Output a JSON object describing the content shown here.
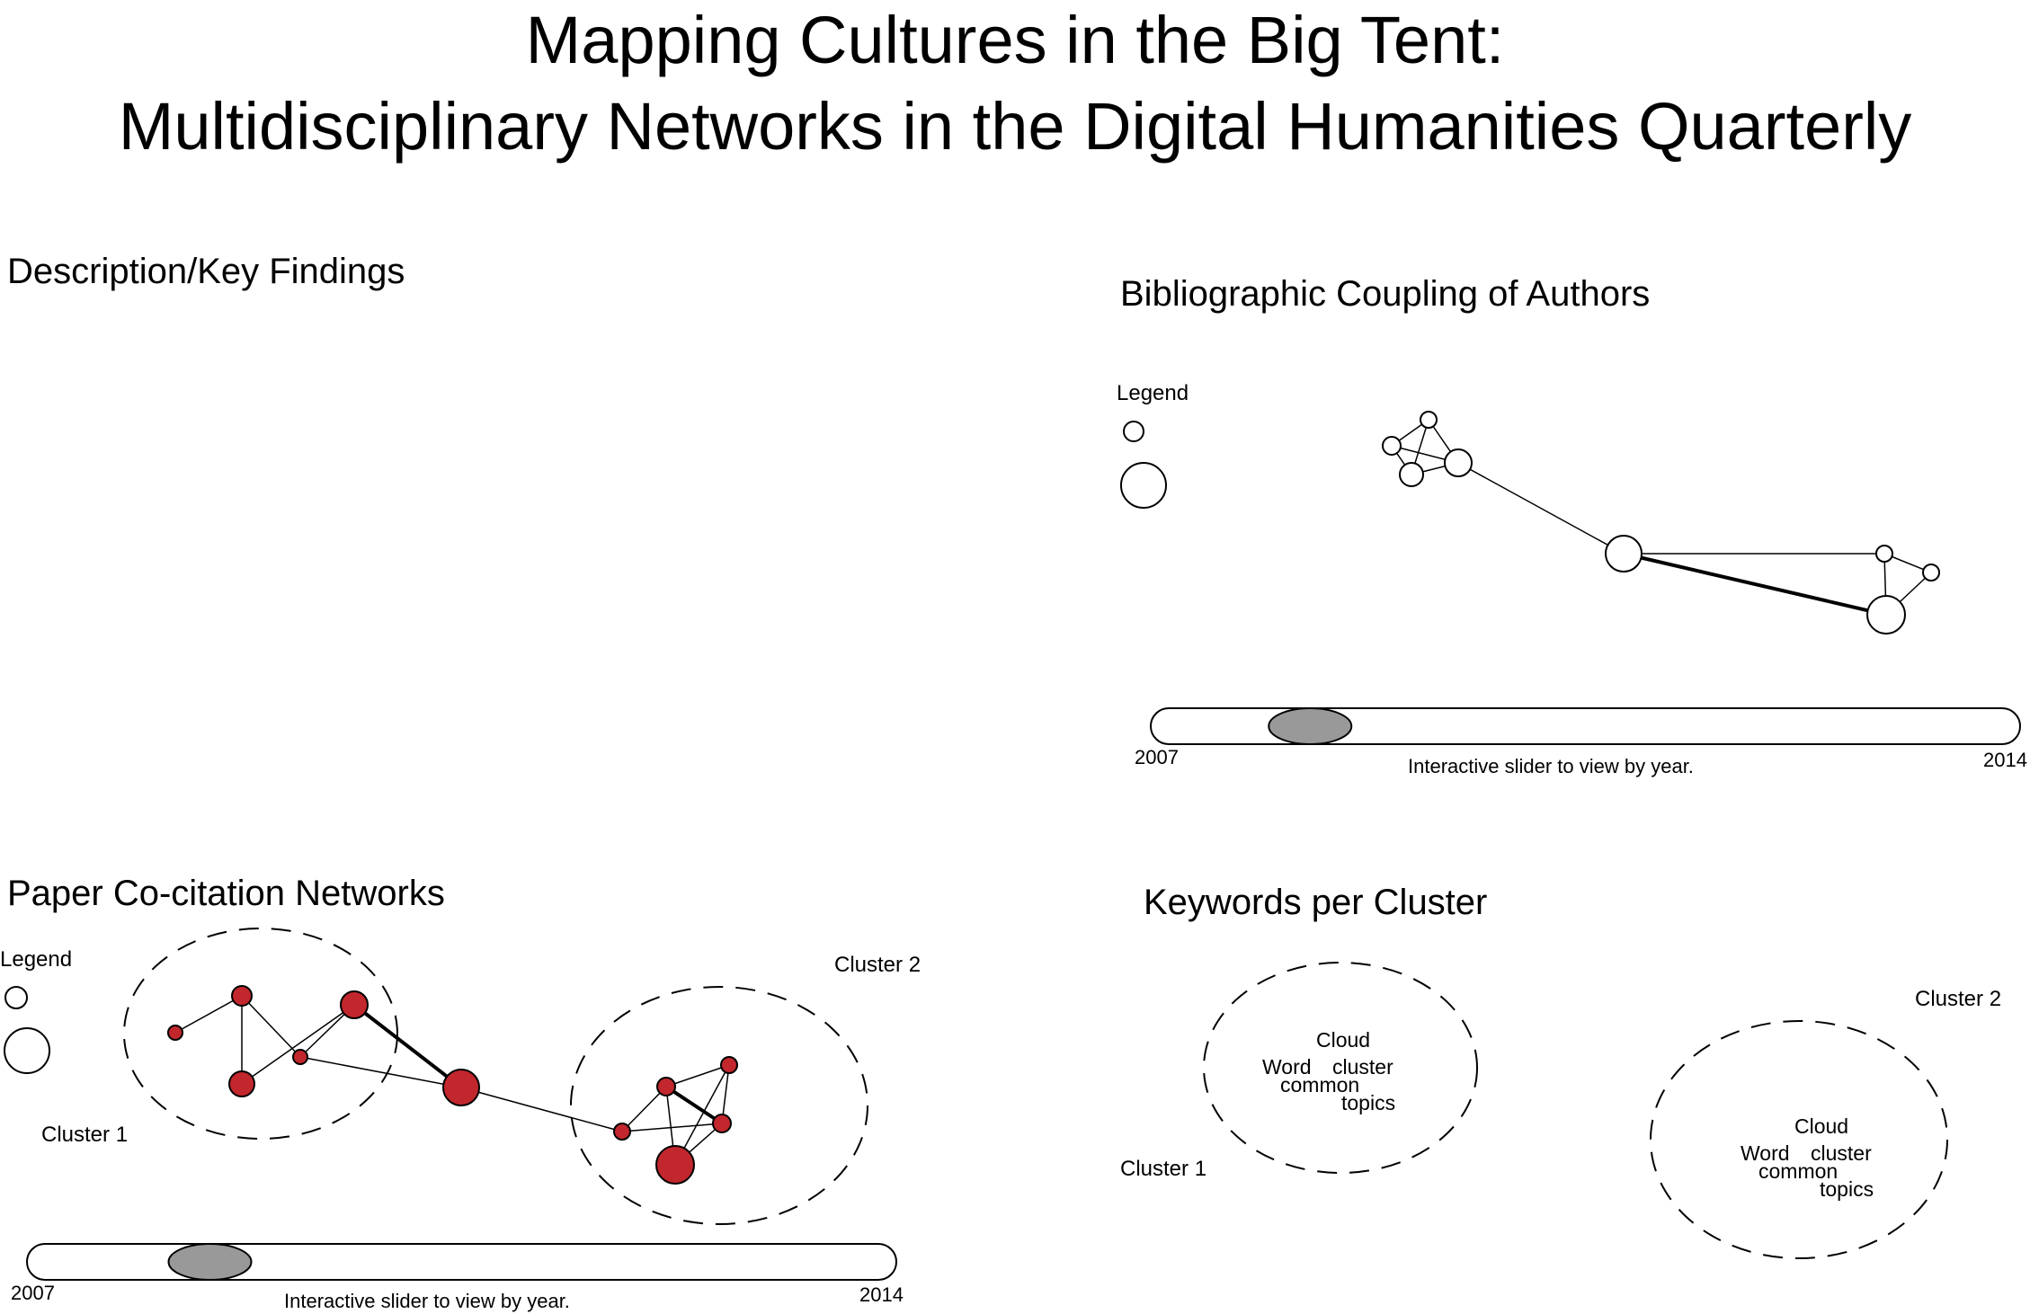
{
  "title": {
    "line1": "Mapping Cultures in the Big Tent:",
    "line2": "Multidisciplinary Networks in the Digital Humanities Quarterly"
  },
  "description": {
    "heading": "Description/Key Findings"
  },
  "bib_coupling": {
    "heading": "Bibliographic Coupling of Authors",
    "legend_label": "Legend",
    "slider": {
      "start_label": "2007",
      "end_label": "2014",
      "caption": "Interactive slider to view by year.",
      "start_year": 2007,
      "end_year": 2014,
      "position": 0.15
    }
  },
  "cocitation": {
    "heading": "Paper Co-citation Networks",
    "legend_label": "Legend",
    "cluster1_label": "Cluster 1",
    "cluster2_label": "Cluster 2",
    "node_color": "#c1272d",
    "slider": {
      "start_label": "2007",
      "end_label": "2014",
      "caption": "Interactive slider to view by year.",
      "start_year": 2007,
      "end_year": 2014,
      "position": 0.18
    }
  },
  "keywords": {
    "heading": "Keywords per Cluster",
    "cluster1": {
      "label": "Cluster 1",
      "words": {
        "w1": "Cloud",
        "w2": "Word",
        "w3": "cluster",
        "w4": "common",
        "w5": "topics"
      }
    },
    "cluster2": {
      "label": "Cluster 2",
      "words": {
        "w1": "Cloud",
        "w2": "Word",
        "w3": "cluster",
        "w4": "common",
        "w5": "topics"
      }
    }
  }
}
